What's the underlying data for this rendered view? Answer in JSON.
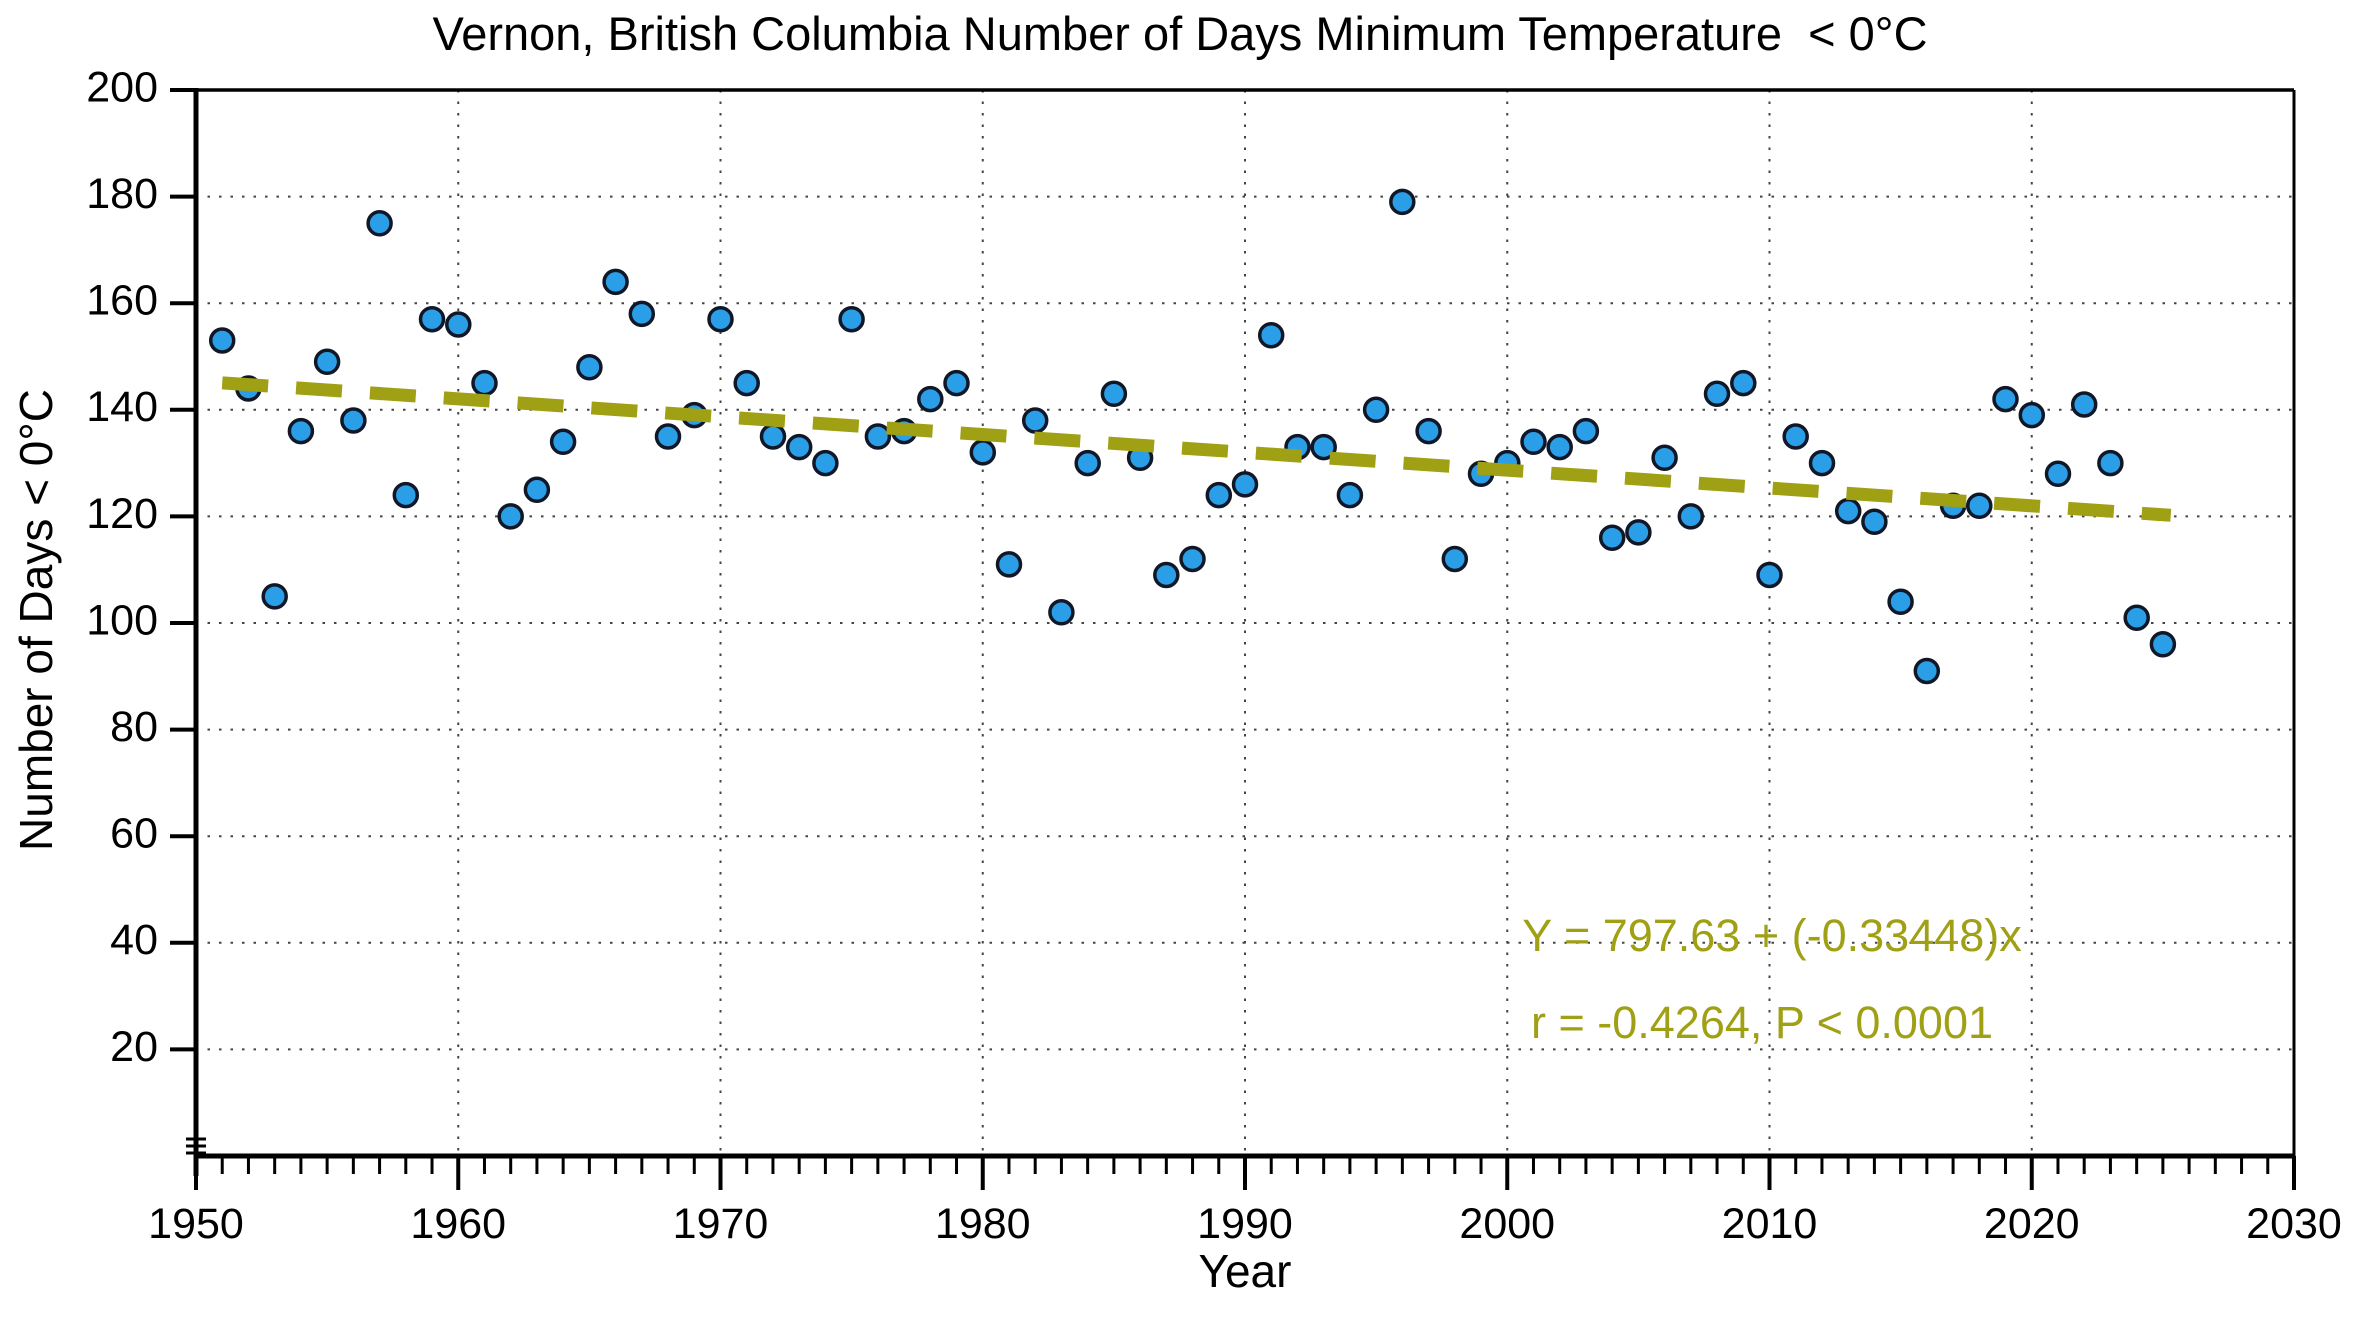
{
  "chart_data": {
    "type": "scatter",
    "title": "Vernon, British Columbia Number of Days Minimum Temperature  < 0°C",
    "xlabel": "Year",
    "ylabel": "Number of Days < 0°C",
    "xlim": [
      1950,
      2030
    ],
    "ylim": [
      0,
      200
    ],
    "x_ticks": [
      1950,
      1960,
      1970,
      1980,
      1990,
      2000,
      2010,
      2020,
      2030
    ],
    "y_ticks": [
      20,
      40,
      60,
      80,
      100,
      120,
      140,
      160,
      180,
      200
    ],
    "grid": "dotted gridlines at every 10 years and every 20 days; legend none",
    "axis_break": true,
    "x": [
      1951,
      1952,
      1953,
      1954,
      1955,
      1956,
      1957,
      1958,
      1959,
      1960,
      1961,
      1962,
      1963,
      1964,
      1965,
      1966,
      1967,
      1968,
      1969,
      1970,
      1971,
      1972,
      1973,
      1974,
      1975,
      1976,
      1977,
      1978,
      1979,
      1980,
      1981,
      1982,
      1983,
      1984,
      1985,
      1986,
      1987,
      1988,
      1989,
      1990,
      1991,
      1992,
      1993,
      1994,
      1995,
      1996,
      1997,
      1998,
      1999,
      2000,
      2001,
      2002,
      2003,
      2004,
      2005,
      2006,
      2007,
      2008,
      2009,
      2010,
      2011,
      2012,
      2013,
      2014,
      2015,
      2016,
      2017,
      2018,
      2019,
      2020,
      2021,
      2022,
      2023,
      2024,
      2025
    ],
    "y": [
      153,
      144,
      105,
      136,
      149,
      138,
      175,
      124,
      157,
      156,
      145,
      120,
      125,
      134,
      148,
      164,
      158,
      135,
      139,
      157,
      145,
      135,
      133,
      130,
      157,
      135,
      136,
      142,
      145,
      132,
      111,
      138,
      102,
      130,
      143,
      131,
      109,
      112,
      124,
      126,
      154,
      133,
      133,
      124,
      140,
      179,
      136,
      112,
      128,
      130,
      134,
      133,
      136,
      116,
      117,
      131,
      120,
      143,
      145,
      109,
      135,
      130,
      121,
      119,
      104,
      91,
      122,
      122,
      142,
      139,
      128,
      141,
      130,
      101,
      96
    ],
    "trend": {
      "label_line1": "Y = 797.63 + (-0.33448)x",
      "label_line2": "r = -0.4264, P < 0.0001",
      "intercept": 797.63,
      "slope": -0.33448,
      "r": -0.4264,
      "p": "P < 0.0001",
      "x_start": 1951,
      "x_end": 2025.3
    },
    "colors": {
      "point_fill": "#2B9EE8",
      "point_stroke": "#101828",
      "trend": "#A0A015",
      "annotation_text": "#A0A015",
      "axis": "#000000",
      "grid": "#444444"
    },
    "marker": {
      "shape": "circle",
      "radius": 11.5
    }
  }
}
